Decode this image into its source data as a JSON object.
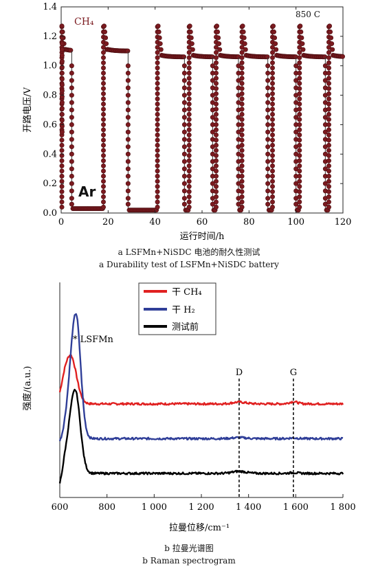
{
  "figure_a": {
    "caption_cn": "a  LSFMn+NiSDC 电池的耐久性测试",
    "caption_en": "a  Durability test of LSFMn+NiSDC battery",
    "annotations": {
      "gas_fuel": "CH₄",
      "gas_inert": "Ar",
      "temperature": "850 C"
    }
  },
  "figure_b": {
    "caption_cn": "b  拉曼光谱图",
    "caption_en": "b  Raman spectrogram",
    "peak_label": "* LSFMn",
    "markers": [
      "D",
      "G"
    ]
  },
  "chart_data": [
    {
      "type": "scatter",
      "title": "",
      "xlabel": "运行时间/h",
      "ylabel": "开路电压/V",
      "xlim": [
        0,
        120
      ],
      "ylim": [
        0,
        1.4
      ],
      "x_ticks": [
        "0",
        "20",
        "40",
        "60",
        "80",
        "100",
        "120"
      ],
      "y_ticks": [
        "0.0",
        "0.2",
        "0.4",
        "0.6",
        "0.8",
        "1.0",
        "1.2",
        "1.4"
      ],
      "marker_color": "#7b1a1f",
      "cycles": [
        {
          "ch4_start": 0,
          "ch4_end": 4.5,
          "ch4_plateau": 1.1,
          "ar_end": 18,
          "ocv_floor": 0.03
        },
        {
          "ch4_start": 18,
          "ch4_end": 28.5,
          "ch4_plateau": 1.1,
          "ar_end": 41,
          "ocv_floor": 0.02
        },
        {
          "ch4_start": 41,
          "ch4_end": 52.5,
          "ch4_plateau": 1.06,
          "ar_end": 54.5,
          "ocv_floor": 0.02
        },
        {
          "ch4_start": 54.5,
          "ch4_end": 64.5,
          "ch4_plateau": 1.06,
          "ar_end": 66,
          "ocv_floor": 0.02
        },
        {
          "ch4_start": 66,
          "ch4_end": 75.5,
          "ch4_plateau": 1.06,
          "ar_end": 77,
          "ocv_floor": 0.02
        },
        {
          "ch4_start": 77,
          "ch4_end": 88,
          "ch4_plateau": 1.06,
          "ar_end": 90,
          "ocv_floor": 0.02
        },
        {
          "ch4_start": 90,
          "ch4_end": 100,
          "ch4_plateau": 1.06,
          "ar_end": 101.5,
          "ocv_floor": 0.02
        },
        {
          "ch4_start": 101.5,
          "ch4_end": 112.5,
          "ch4_plateau": 1.06,
          "ar_end": 114,
          "ocv_floor": 0.02
        },
        {
          "ch4_start": 114,
          "ch4_end": 120,
          "ch4_plateau": 1.06,
          "ar_end": 120,
          "ocv_floor": 0.02
        }
      ]
    },
    {
      "type": "line",
      "title": "",
      "xlabel": "拉曼位移/cm⁻¹",
      "ylabel": "强度/(a.u.)",
      "xlim": [
        600,
        1800
      ],
      "x_ticks": [
        "600",
        "800",
        "1 000",
        "1 200",
        "1 400",
        "1 600",
        "1 800"
      ],
      "x_tick_values": [
        600,
        800,
        1000,
        1200,
        1400,
        1600,
        1800
      ],
      "markers": [
        {
          "label": "D",
          "x": 1360
        },
        {
          "label": "G",
          "x": 1590
        }
      ],
      "legend_position": "top-left",
      "series": [
        {
          "name": "干 CH₄",
          "color": "#e02020",
          "baseline": 0.42,
          "peak_x": 645,
          "peak_h": 0.28,
          "peak_w": 35,
          "d_bump": 0.01,
          "g_bump": 0.012
        },
        {
          "name": "干 H₂",
          "color": "#2f3e98",
          "baseline": 0.22,
          "peak_x": 668,
          "peak_h": 0.72,
          "peak_w": 28,
          "d_bump": 0.006,
          "g_bump": 0.004
        },
        {
          "name": "测试前",
          "color": "#000000",
          "baseline": 0.02,
          "peak_x": 665,
          "peak_h": 0.48,
          "peak_w": 30,
          "d_bump": 0.012,
          "g_bump": 0.004
        }
      ]
    }
  ]
}
